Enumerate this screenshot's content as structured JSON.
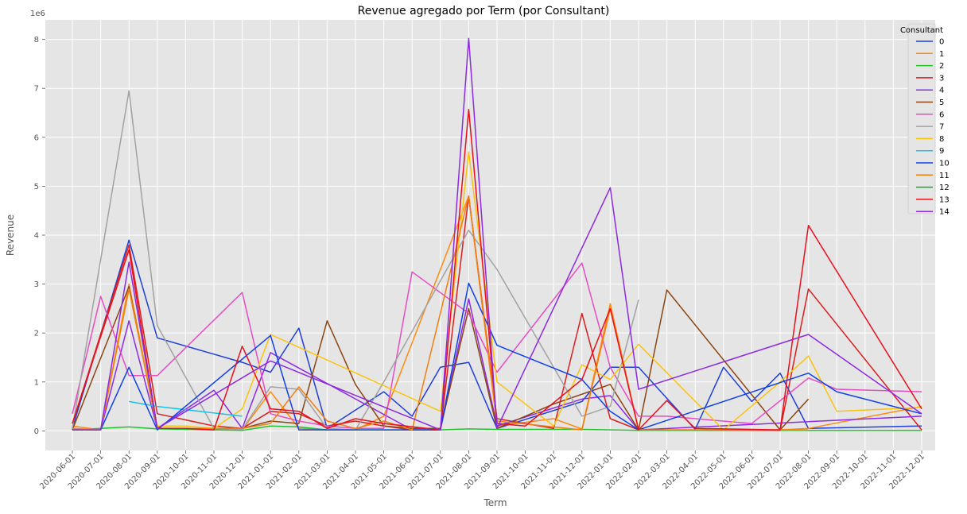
{
  "chart_data": {
    "type": "line",
    "title": "Revenue agregado por Term (por Consultant)",
    "xlabel": "Term",
    "ylabel": "Revenue",
    "y_multiplier_label": "1e6",
    "ylim": [
      -0.4,
      8.4
    ],
    "yticks": [
      0,
      1,
      2,
      3,
      4,
      5,
      6,
      7,
      8
    ],
    "grid": true,
    "legend_title": "Consultant",
    "legend_position": "top-right",
    "categories": [
      "2020-06-01",
      "2020-07-01",
      "2020-08-01",
      "2020-09-01",
      "2020-10-01",
      "2020-11-01",
      "2020-12-01",
      "2021-01-01",
      "2021-02-01",
      "2021-03-01",
      "2021-04-01",
      "2021-05-01",
      "2021-06-01",
      "2021-07-01",
      "2021-08-01",
      "2021-09-01",
      "2021-10-01",
      "2021-11-01",
      "2021-12-01",
      "2022-01-01",
      "2022-02-01",
      "2022-03-01",
      "2022-04-01",
      "2022-05-01",
      "2022-06-01",
      "2022-07-01",
      "2022-08-01",
      "2022-09-01",
      "2022-10-01",
      "2022-11-01",
      "2022-12-01"
    ],
    "series": [
      {
        "name": "0",
        "color": "#1f3fd8",
        "values": [
          0.05,
          null,
          3.9,
          1.9,
          null,
          null,
          1.4,
          1.2,
          2.1,
          0.05,
          null,
          0.8,
          0.3,
          1.3,
          1.4,
          0.05,
          null,
          null,
          0.6,
          1.3,
          1.3,
          null,
          0.03,
          1.3,
          0.6,
          1.18,
          0.05,
          null,
          null,
          null,
          0.1
        ]
      },
      {
        "name": "1",
        "color": "#ff8a0e",
        "values": [
          0.1,
          0.02,
          3.0,
          0.05,
          null,
          null,
          0.02,
          0.8,
          0.05,
          0.02,
          0.02,
          0.3,
          null,
          null,
          4.8,
          0.1,
          null,
          0.25,
          0.04,
          2.6,
          0.02,
          null,
          null,
          null,
          null,
          0.02,
          0.05,
          null,
          null,
          null,
          0.5
        ]
      },
      {
        "name": "2",
        "color": "#22c22e",
        "values": [
          0.02,
          null,
          0.08,
          0.04,
          null,
          null,
          0.01,
          0.1,
          0.08,
          0.02,
          null,
          null,
          0.02,
          0.02,
          0.04,
          0.03,
          null,
          null,
          0.03,
          0.02,
          0.01,
          null,
          null,
          null,
          null,
          0.01,
          0.01,
          null,
          null,
          null,
          0.01
        ]
      },
      {
        "name": "3",
        "color": "#d81f1f",
        "values": [
          0.15,
          null,
          3.8,
          0.35,
          null,
          0.1,
          0.05,
          0.4,
          0.35,
          0.1,
          0.2,
          0.1,
          0.02,
          0.02,
          4.8,
          0.25,
          null,
          0.05,
          2.4,
          0.25,
          0.02,
          null,
          null,
          null,
          null,
          0.01,
          2.9,
          null,
          null,
          null,
          0.02
        ]
      },
      {
        "name": "4",
        "color": "#8c2be2",
        "values": [
          0.02,
          0.02,
          2.25,
          0.05,
          null,
          0.83,
          0.05,
          1.6,
          null,
          null,
          null,
          null,
          0.02,
          0.02,
          2.7,
          0.1,
          null,
          null,
          0.65,
          0.72,
          0.02,
          null,
          null,
          null,
          null,
          null,
          null,
          null,
          null,
          null,
          0.3
        ]
      },
      {
        "name": "5",
        "color": "#8b4512",
        "values": [
          0.02,
          null,
          2.95,
          0.05,
          0.05,
          0.05,
          0.05,
          0.2,
          0.15,
          2.25,
          0.95,
          0.1,
          0.05,
          0.05,
          2.5,
          0.05,
          null,
          0.55,
          null,
          0.95,
          0.02,
          2.88,
          null,
          null,
          null,
          0.02,
          0.65,
          null,
          null,
          null,
          null
        ]
      },
      {
        "name": "6",
        "color": "#e64dc2",
        "values": [
          0.35,
          2.75,
          1.13,
          1.13,
          null,
          null,
          2.83,
          0.35,
          0.2,
          0.1,
          0.05,
          0.05,
          3.25,
          null,
          2.4,
          1.2,
          null,
          null,
          3.43,
          1.3,
          0.3,
          0.3,
          null,
          null,
          0.15,
          null,
          1.08,
          0.85,
          null,
          null,
          0.8
        ]
      },
      {
        "name": "7",
        "color": "#a2a2a2",
        "values": [
          0.05,
          null,
          6.95,
          2.15,
          null,
          0.05,
          0.03,
          0.9,
          0.85,
          0.05,
          0.02,
          1.0,
          null,
          null,
          4.1,
          3.3,
          null,
          null,
          0.3,
          0.5,
          2.68,
          null,
          null,
          null,
          null,
          null,
          null,
          null,
          null,
          null,
          null
        ]
      },
      {
        "name": "8",
        "color": "#fac30e",
        "values": [
          0.05,
          0.02,
          2.9,
          0.1,
          0.1,
          0.05,
          0.45,
          1.97,
          null,
          null,
          null,
          null,
          null,
          0.4,
          5.7,
          1.0,
          null,
          0.1,
          1.35,
          1.05,
          1.77,
          null,
          null,
          0.02,
          null,
          1.0,
          1.53,
          0.4,
          null,
          null,
          0.48
        ]
      },
      {
        "name": "9",
        "color": "#17c3e6",
        "values": [
          null,
          null,
          0.6,
          0.5,
          null,
          null,
          0.3,
          null,
          null,
          null,
          null,
          null,
          null,
          null,
          null,
          null,
          null,
          null,
          null,
          null,
          null,
          null,
          null,
          null,
          null,
          null,
          null,
          null,
          null,
          null,
          null
        ]
      },
      {
        "name": "10",
        "color": "#1040e8",
        "values": [
          0.02,
          0.02,
          1.3,
          0.02,
          null,
          null,
          null,
          1.95,
          0.02,
          0.02,
          0.02,
          null,
          null,
          0.02,
          3.02,
          1.75,
          null,
          null,
          1.05,
          0.4,
          0.02,
          null,
          null,
          null,
          null,
          null,
          1.18,
          0.8,
          null,
          null,
          0.35
        ]
      },
      {
        "name": "11",
        "color": "#f07f10",
        "values": [
          0.05,
          0.02,
          2.9,
          0.05,
          null,
          null,
          0.05,
          0.15,
          0.9,
          0.2,
          0.05,
          0.2,
          0.02,
          null,
          4.8,
          0.2,
          null,
          null,
          0.02,
          2.5,
          0.02,
          null,
          null,
          null,
          null,
          null,
          0.02,
          null,
          null,
          null,
          null
        ]
      },
      {
        "name": "12",
        "color": "#19a624",
        "values": [
          null,
          null,
          null,
          null,
          null,
          null,
          null,
          null,
          null,
          null,
          null,
          null,
          null,
          null,
          null,
          null,
          null,
          null,
          null,
          null,
          null,
          null,
          null,
          null,
          null,
          null,
          null,
          null,
          null,
          null,
          null
        ]
      },
      {
        "name": "13",
        "color": "#e8101e",
        "values": [
          0.15,
          null,
          3.7,
          0.05,
          0.05,
          0.02,
          1.73,
          0.45,
          0.4,
          0.05,
          0.25,
          0.15,
          null,
          0.02,
          6.57,
          0.15,
          0.1,
          null,
          1.05,
          2.5,
          0.02,
          0.62,
          0.05,
          null,
          null,
          0.02,
          4.2,
          null,
          null,
          null,
          0.45
        ]
      },
      {
        "name": "14",
        "color": "#8b2be0",
        "values": [
          0.02,
          0.02,
          3.45,
          0.05,
          null,
          null,
          null,
          1.43,
          null,
          null,
          null,
          null,
          null,
          0.02,
          8.02,
          0.05,
          null,
          null,
          null,
          4.97,
          0.85,
          null,
          null,
          null,
          null,
          null,
          1.97,
          null,
          null,
          null,
          0.35
        ]
      }
    ]
  }
}
